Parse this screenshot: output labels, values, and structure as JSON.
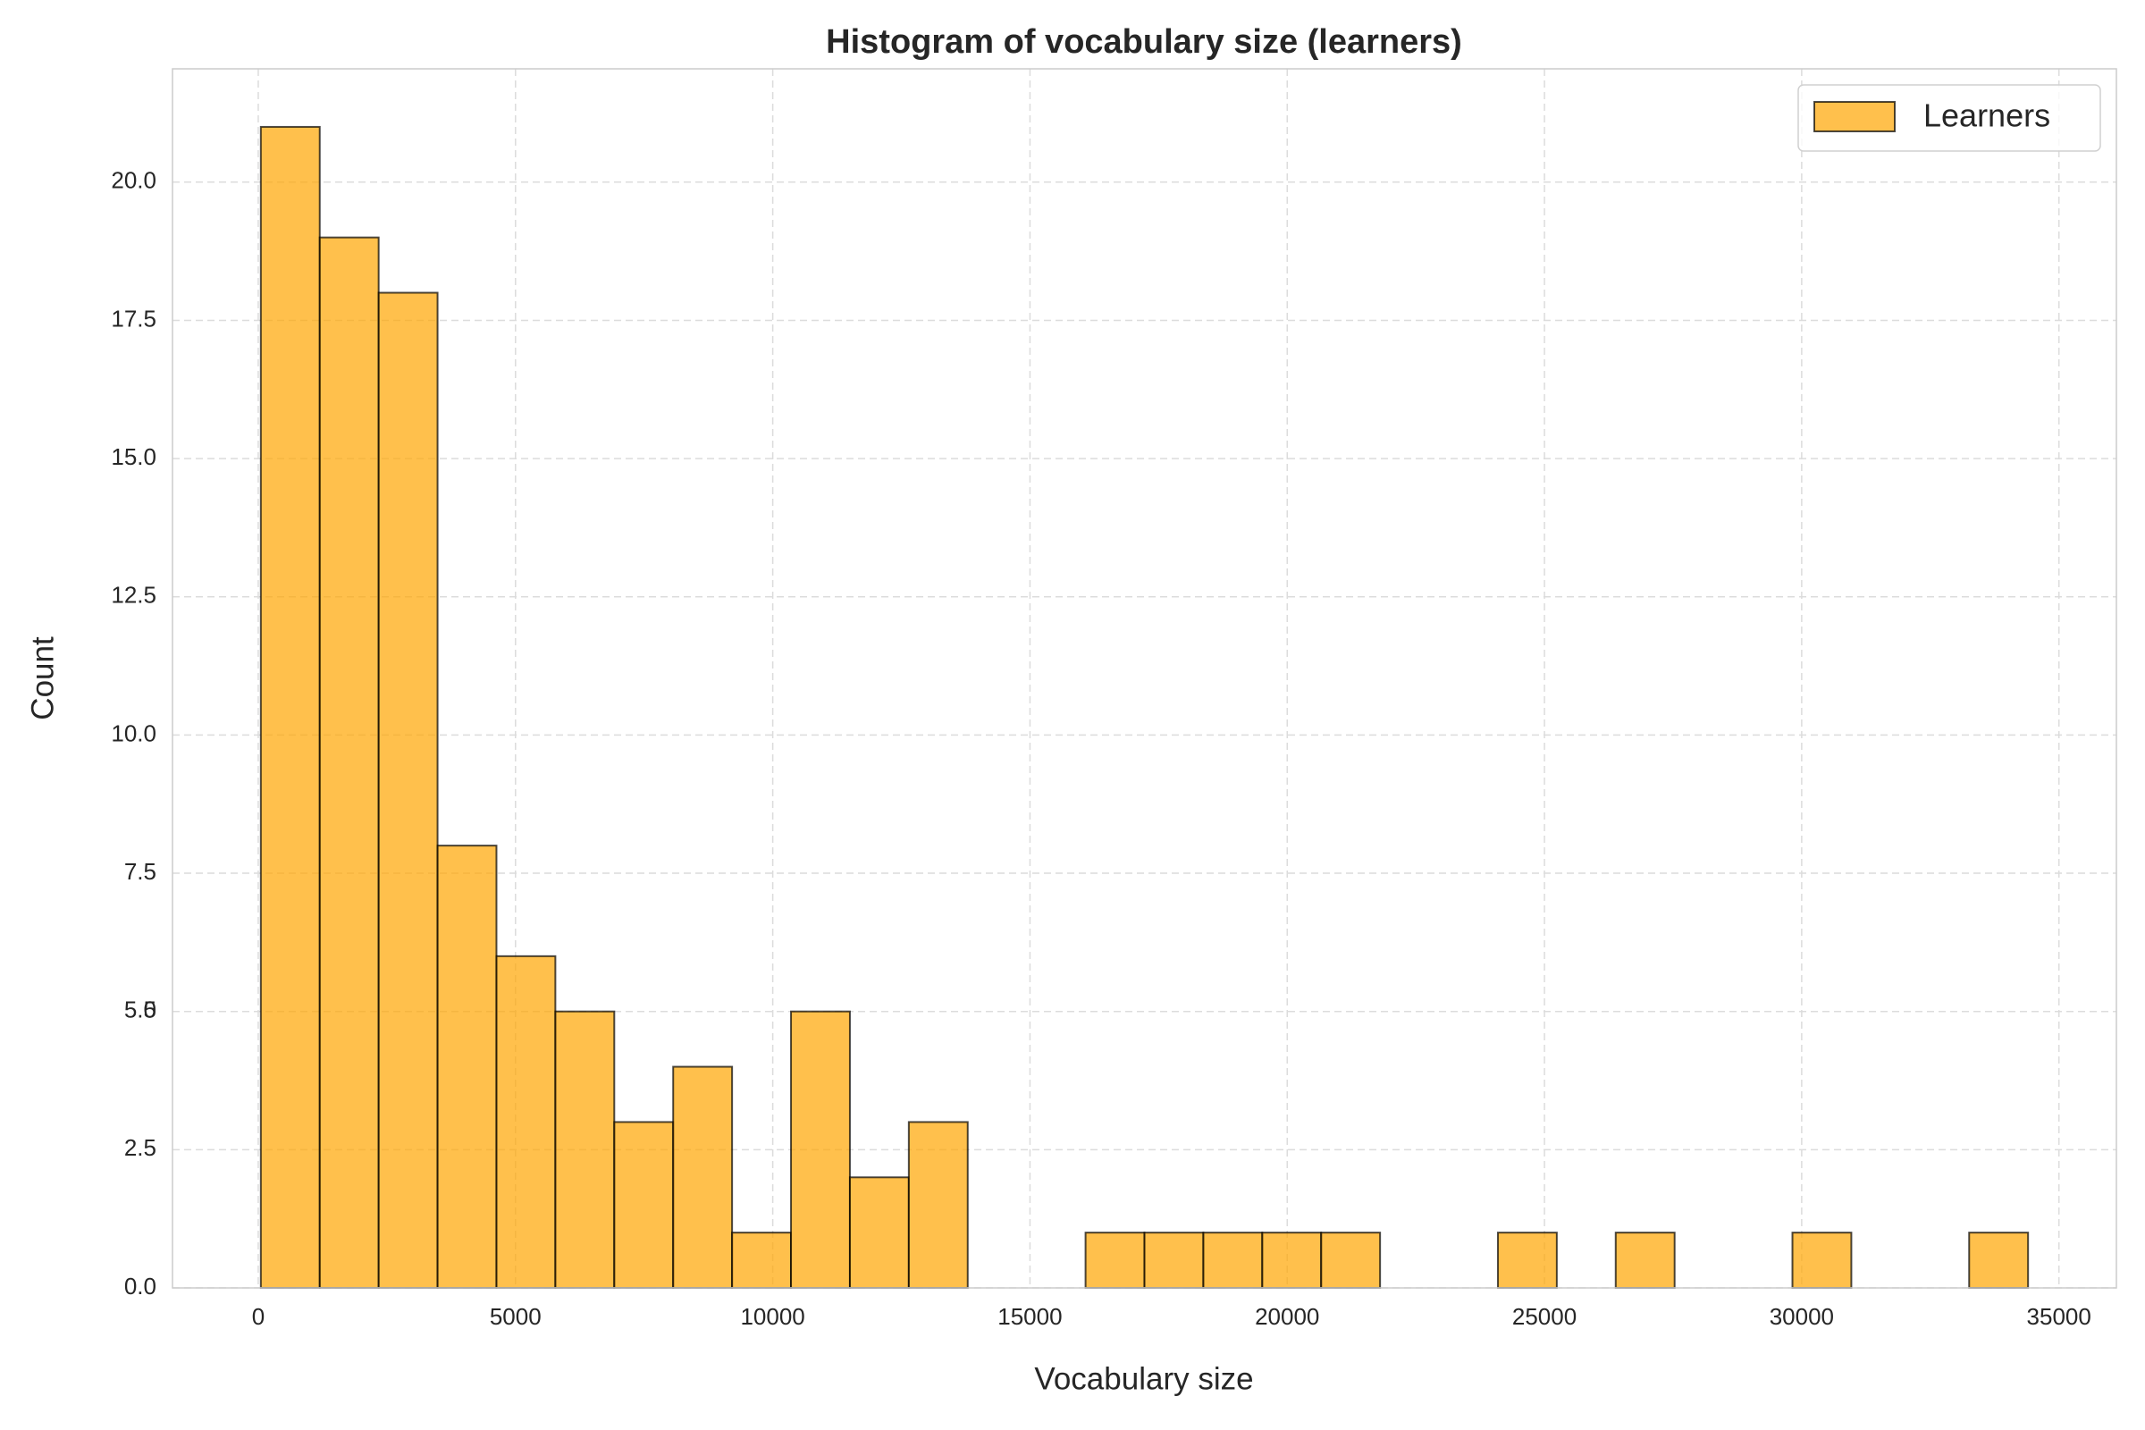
{
  "chart_data": {
    "type": "histogram",
    "title": "Histogram of vocabulary size (learners)",
    "x_label": "Vocabulary size",
    "y_label": "Count",
    "bins": [
      50,
      1195,
      2340,
      3485,
      4630,
      5775,
      6920,
      8065,
      9210,
      10355,
      11500,
      12645,
      13790,
      14935,
      16080,
      17225,
      18370,
      19515,
      20660,
      21805,
      22950,
      24095,
      25240,
      26385,
      27530,
      28675,
      29820,
      30965,
      32110,
      33255,
      34400
    ],
    "series": [
      {
        "name": "Learners",
        "color": "#ffa500",
        "values": [
          21,
          19,
          18,
          8,
          6,
          5,
          3,
          4,
          1,
          5,
          2,
          3,
          0,
          0,
          1,
          1,
          1,
          1,
          1,
          0,
          0,
          1,
          0,
          1,
          0,
          0,
          1,
          0,
          0,
          1
        ]
      }
    ],
    "xlim": [
      -1667,
      36117
    ],
    "ylim": [
      0,
      22.05
    ],
    "xticks": [
      0,
      5000,
      10000,
      15000,
      20000,
      25000,
      30000,
      35000
    ],
    "yticks": [
      {
        "value": 0,
        "label": "0.0"
      },
      2.5,
      5,
      {
        "value": 5,
        "label": "5.0"
      },
      7.5,
      {
        "value": 10,
        "label": "10.0"
      },
      12.5,
      {
        "value": 15,
        "label": "15.0"
      },
      17.5,
      {
        "value": 20,
        "label": "20.0"
      }
    ],
    "grid": true,
    "legend": "upper right"
  }
}
